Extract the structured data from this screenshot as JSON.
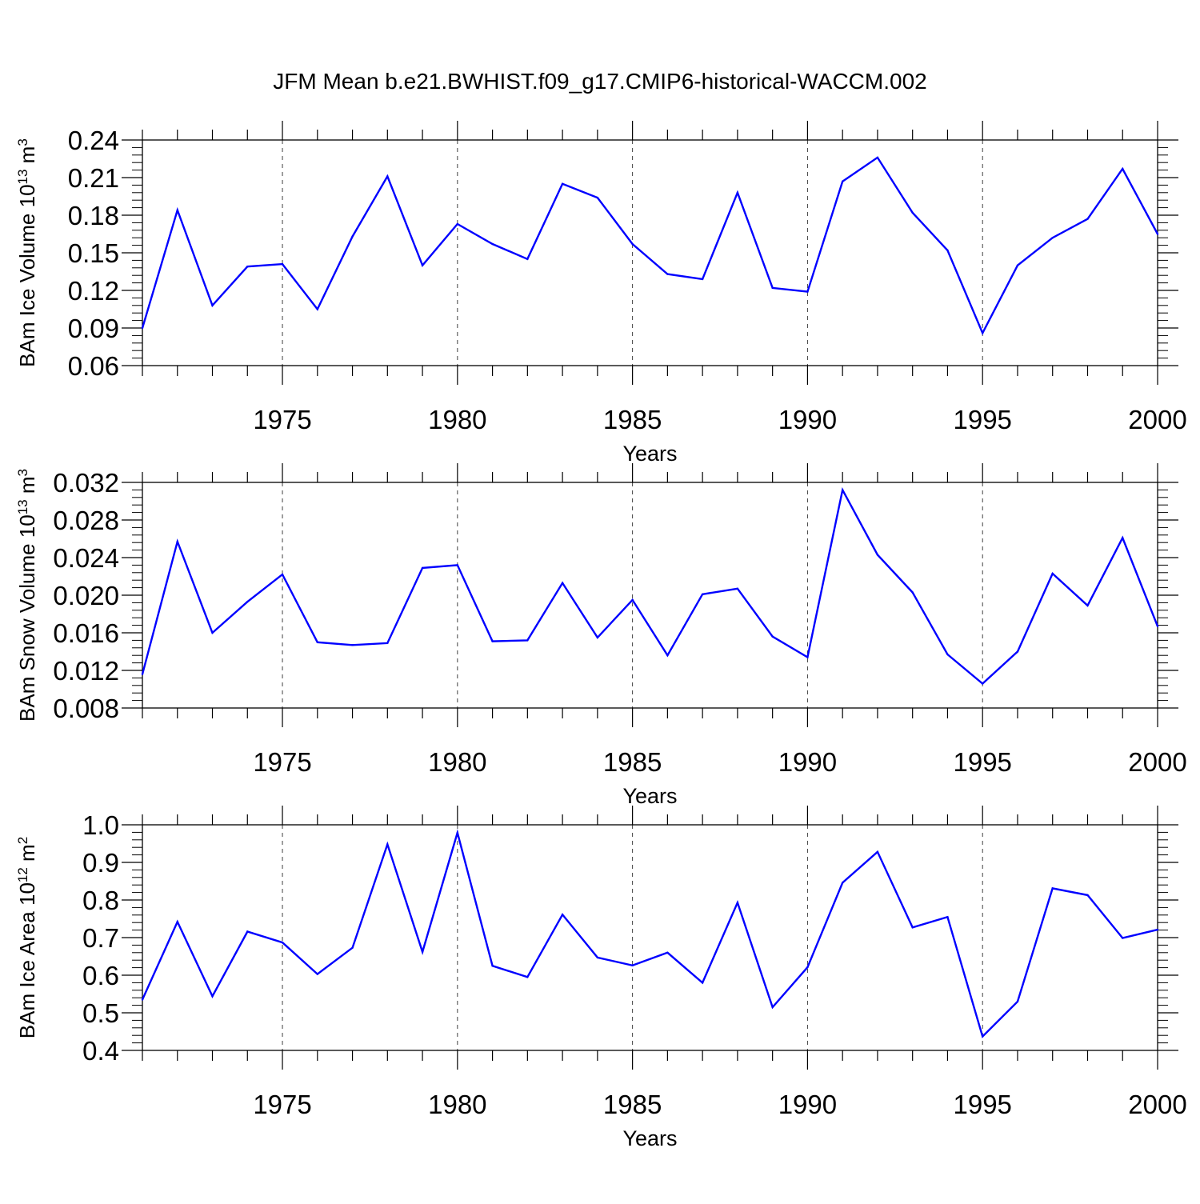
{
  "figure_title": "JFM Mean b.e21.BWHIST.f09_g17.CMIP6-historical-WACCM.002",
  "colors": {
    "series": "#0000ff",
    "axis": "#000000",
    "grid": "#000000"
  },
  "chart_data": [
    {
      "type": "line",
      "ylabel_prefix": "BAm Ice Volume 10",
      "ylabel_exp": "13",
      "ylabel_unit": " m",
      "ylabel_unit_exp": "3",
      "xlabel": "Years",
      "xlim": [
        1971,
        2000
      ],
      "ylim": [
        0.06,
        0.24
      ],
      "yticks": [
        "0.06",
        "0.09",
        "0.12",
        "0.15",
        "0.18",
        "0.21",
        "0.24"
      ],
      "xticks": [
        "1975",
        "1980",
        "1985",
        "1990",
        "1995",
        "2000"
      ],
      "x": [
        1971,
        1972,
        1973,
        1974,
        1975,
        1976,
        1977,
        1978,
        1979,
        1980,
        1981,
        1982,
        1983,
        1984,
        1985,
        1986,
        1987,
        1988,
        1989,
        1990,
        1991,
        1992,
        1993,
        1994,
        1995,
        1996,
        1997,
        1998,
        1999,
        2000
      ],
      "values": [
        0.09,
        0.184,
        0.108,
        0.139,
        0.141,
        0.105,
        0.163,
        0.211,
        0.14,
        0.173,
        0.157,
        0.145,
        0.205,
        0.194,
        0.157,
        0.133,
        0.129,
        0.198,
        0.122,
        0.119,
        0.207,
        0.226,
        0.182,
        0.152,
        0.086,
        0.14,
        0.162,
        0.177,
        0.217,
        0.165
      ]
    },
    {
      "type": "line",
      "ylabel_prefix": "BAm Snow Volume 10",
      "ylabel_exp": "13",
      "ylabel_unit": " m",
      "ylabel_unit_exp": "3",
      "xlabel": "Years",
      "xlim": [
        1971,
        2000
      ],
      "ylim": [
        0.008,
        0.032
      ],
      "yticks": [
        "0.008",
        "0.012",
        "0.016",
        "0.020",
        "0.024",
        "0.028",
        "0.032"
      ],
      "xticks": [
        "1975",
        "1980",
        "1985",
        "1990",
        "1995",
        "2000"
      ],
      "x": [
        1971,
        1972,
        1973,
        1974,
        1975,
        1976,
        1977,
        1978,
        1979,
        1980,
        1981,
        1982,
        1983,
        1984,
        1985,
        1986,
        1987,
        1988,
        1989,
        1990,
        1991,
        1992,
        1993,
        1994,
        1995,
        1996,
        1997,
        1998,
        1999,
        2000
      ],
      "values": [
        0.0116,
        0.0257,
        0.016,
        0.0193,
        0.0222,
        0.015,
        0.0147,
        0.0149,
        0.0229,
        0.0232,
        0.0151,
        0.0152,
        0.0213,
        0.0155,
        0.0195,
        0.0136,
        0.0201,
        0.0207,
        0.0156,
        0.0134,
        0.0312,
        0.0243,
        0.0203,
        0.0137,
        0.0106,
        0.014,
        0.0223,
        0.0189,
        0.0261,
        0.0167
      ]
    },
    {
      "type": "line",
      "ylabel_prefix": "BAm Ice Area 10",
      "ylabel_exp": "12",
      "ylabel_unit": " m",
      "ylabel_unit_exp": "2",
      "xlabel": "Years",
      "xlim": [
        1971,
        2000
      ],
      "ylim": [
        0.4,
        1.0
      ],
      "yticks": [
        "0.4",
        "0.5",
        "0.6",
        "0.7",
        "0.8",
        "0.9",
        "1.0"
      ],
      "xticks": [
        "1975",
        "1980",
        "1985",
        "1990",
        "1995",
        "2000"
      ],
      "x": [
        1971,
        1972,
        1973,
        1974,
        1975,
        1976,
        1977,
        1978,
        1979,
        1980,
        1981,
        1982,
        1983,
        1984,
        1985,
        1986,
        1987,
        1988,
        1989,
        1990,
        1991,
        1992,
        1993,
        1994,
        1995,
        1996,
        1997,
        1998,
        1999,
        2000
      ],
      "values": [
        0.535,
        0.742,
        0.544,
        0.716,
        0.687,
        0.603,
        0.673,
        0.948,
        0.662,
        0.979,
        0.625,
        0.595,
        0.761,
        0.647,
        0.626,
        0.66,
        0.58,
        0.793,
        0.515,
        0.621,
        0.846,
        0.928,
        0.727,
        0.755,
        0.437,
        0.53,
        0.831,
        0.813,
        0.699,
        0.721
      ]
    }
  ]
}
